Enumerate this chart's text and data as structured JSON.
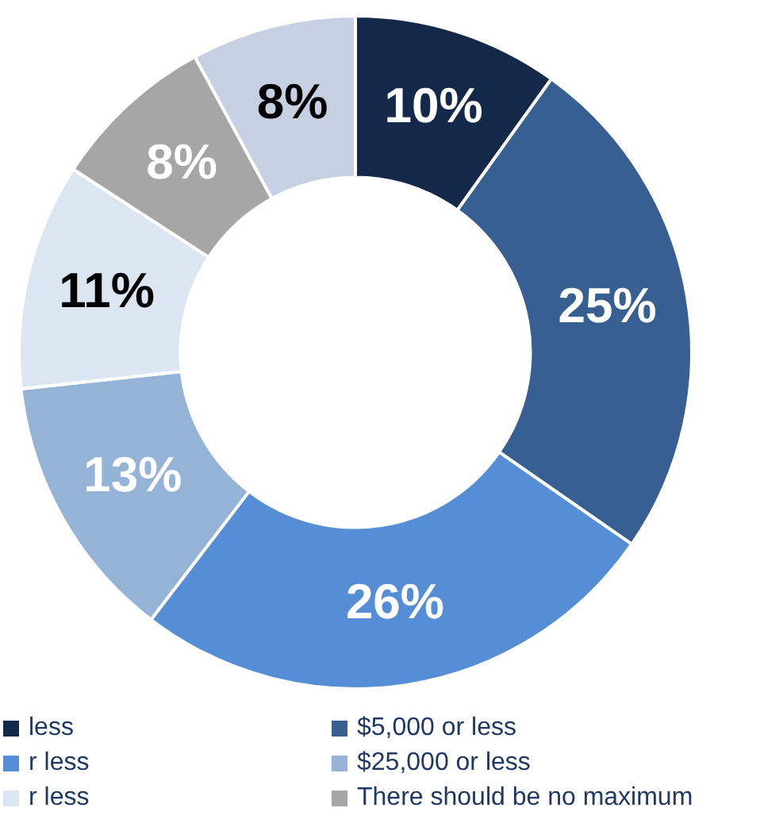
{
  "chart_data": {
    "type": "donut",
    "categories": [
      "less",
      "$5,000 or less",
      "r less",
      "$25,000 or less",
      "r less",
      "There should be no maximum",
      null
    ],
    "values": [
      10,
      25,
      26,
      13,
      11,
      8,
      8
    ],
    "colors": [
      "#14284a",
      "#375f92",
      "#558ed5",
      "#95b3d7",
      "#dce6f2",
      "#a6a6a6",
      "#c6d0e2"
    ],
    "value_labels": [
      "10%",
      "25%",
      "26%",
      "13%",
      "11%",
      "8%",
      "8%"
    ],
    "legend": "bottom"
  }
}
